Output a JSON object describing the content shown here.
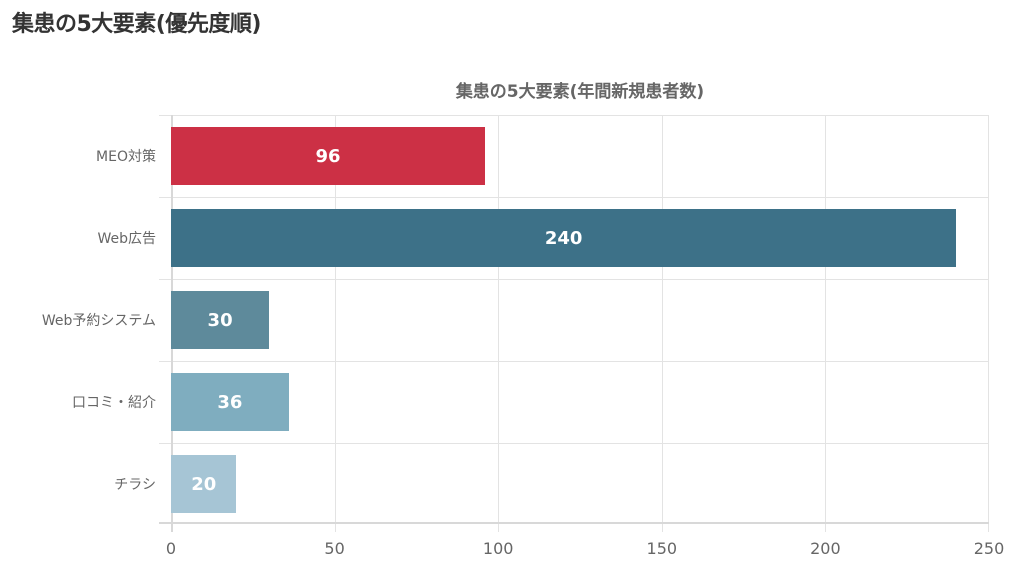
{
  "page": {
    "title": "集患の5大要素(優先度順)"
  },
  "chart": {
    "title": "集患の5大要素(年間新規患者数)",
    "categories": [
      {
        "label": "MEO対策",
        "value": "96",
        "color": "#cc3045"
      },
      {
        "label": "Web広告",
        "value": "240",
        "color": "#3d7188"
      },
      {
        "label": "Web予約システム",
        "value": "30",
        "color": "#5e8a9b"
      },
      {
        "label": "口コミ・紹介",
        "value": "36",
        "color": "#7fadbf"
      },
      {
        "label": "チラシ",
        "value": "20",
        "color": "#a6c5d5"
      }
    ],
    "ticks": [
      "0",
      "50",
      "100",
      "150",
      "200",
      "250"
    ]
  },
  "chart_data": {
    "type": "bar",
    "orientation": "horizontal",
    "title": "集患の5大要素(年間新規患者数)",
    "categories": [
      "MEO対策",
      "Web広告",
      "Web予約システム",
      "口コミ・紹介",
      "チラシ"
    ],
    "values": [
      96,
      240,
      30,
      36,
      20
    ],
    "colors": [
      "#cc3045",
      "#3d7188",
      "#5e8a9b",
      "#7fadbf",
      "#a6c5d5"
    ],
    "xlabel": "",
    "ylabel": "",
    "xlim": [
      0,
      250
    ],
    "xticks": [
      0,
      50,
      100,
      150,
      200,
      250
    ],
    "grid": true,
    "legend": "none",
    "data_labels": true
  }
}
